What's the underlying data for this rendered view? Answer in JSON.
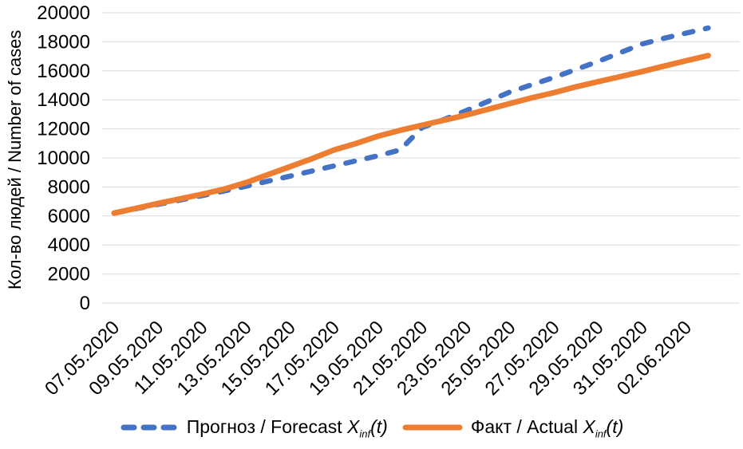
{
  "y_axis": {
    "title": "Кол-во людей / Number of cases",
    "tick_labels": [
      "0",
      "2000",
      "4000",
      "6000",
      "8000",
      "10000",
      "12000",
      "14000",
      "16000",
      "18000",
      "20000"
    ]
  },
  "legend": {
    "items": [
      {
        "prefix": "Прогноз / Forecast ",
        "variable": "X",
        "subscript": "inf",
        "suffix": "(t)",
        "color": "#4472C4",
        "style": "dashed"
      },
      {
        "prefix": "Факт / Actual ",
        "variable": "X",
        "subscript": "inf",
        "suffix": "(t)",
        "color": "#ED7D31",
        "style": "solid"
      }
    ]
  },
  "chart_data": {
    "type": "line",
    "title": "",
    "xlabel": "",
    "ylabel": "Кол-во людей / Number of cases",
    "ylim": [
      0,
      20000
    ],
    "ytick_step": 2000,
    "grid": "horizontal",
    "grid_color": "#D9D9D9",
    "legend_position": "bottom",
    "x_labels": [
      "07.05.2020",
      "09.05.2020",
      "11.05.2020",
      "13.05.2020",
      "15.05.2020",
      "17.05.2020",
      "19.05.2020",
      "21.05.2020",
      "23.05.2020",
      "25.05.2020",
      "27.05.2020",
      "29.05.2020",
      "31.05.2020",
      "02.06.2020"
    ],
    "points_between_labels": 2,
    "series": [
      {
        "id": "forecast",
        "name": "Прогноз / Forecast Xinf(t)",
        "color": "#4472C4",
        "line_style": "dashed",
        "values": [
          6200,
          6500,
          6800,
          7100,
          7400,
          7720,
          8050,
          8400,
          8750,
          9100,
          9450,
          9800,
          10150,
          10550,
          12100,
          12650,
          13250,
          13900,
          14550,
          15050,
          15550,
          16100,
          16650,
          17250,
          17850,
          18250,
          18600,
          18950
        ]
      },
      {
        "id": "actual",
        "name": "Факт / Actual Xinf(t)",
        "color": "#ED7D31",
        "line_style": "solid",
        "values": [
          6200,
          6530,
          6860,
          7180,
          7500,
          7850,
          8300,
          8850,
          9400,
          9950,
          10550,
          11000,
          11500,
          11900,
          12250,
          12600,
          12950,
          13350,
          13750,
          14150,
          14500,
          14900,
          15250,
          15600,
          15950,
          16330,
          16700,
          17050
        ]
      }
    ]
  }
}
